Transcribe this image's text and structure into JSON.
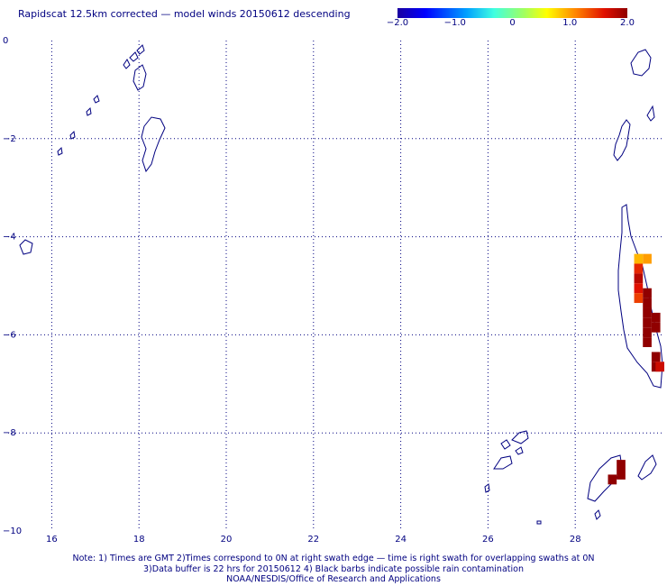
{
  "title": "Rapidscat 12.5km corrected — model winds 20150612 descending",
  "colorbar": {
    "ticks": [
      {
        "label": "−2.0",
        "value": -2.0
      },
      {
        "label": "−1.0",
        "value": -1.0
      },
      {
        "label": "0",
        "value": 0
      },
      {
        "label": "1.0",
        "value": 1.0
      },
      {
        "label": "2.0",
        "value": 2.0
      }
    ],
    "range": [
      -2.0,
      2.0
    ]
  },
  "map": {
    "lon_range": [
      15.0,
      30.0
    ],
    "lat_range": [
      -10.0,
      0.0
    ],
    "x_ticks": [
      {
        "label": "16",
        "value": 16
      },
      {
        "label": "18",
        "value": 18
      },
      {
        "label": "20",
        "value": 20
      },
      {
        "label": "22",
        "value": 22
      },
      {
        "label": "24",
        "value": 24
      },
      {
        "label": "26",
        "value": 26
      },
      {
        "label": "28",
        "value": 28
      }
    ],
    "y_ticks": [
      {
        "label": "0",
        "value": 0
      },
      {
        "label": "−2",
        "value": -2
      },
      {
        "label": "−4",
        "value": -4
      },
      {
        "label": "−6",
        "value": -6
      },
      {
        "label": "−8",
        "value": -8
      },
      {
        "label": "−10",
        "value": -10
      }
    ],
    "grid": true,
    "coast_color": "#000080",
    "wind_cells": [
      {
        "lon": 29.45,
        "lat": -4.45,
        "value": 0.9
      },
      {
        "lon": 29.65,
        "lat": -4.45,
        "value": 1.0
      },
      {
        "lon": 29.45,
        "lat": -4.65,
        "value": 1.5
      },
      {
        "lon": 29.45,
        "lat": -4.85,
        "value": 1.8
      },
      {
        "lon": 29.45,
        "lat": -5.05,
        "value": 1.6
      },
      {
        "lon": 29.45,
        "lat": -5.25,
        "value": 1.4
      },
      {
        "lon": 29.65,
        "lat": -5.15,
        "value": 2.0
      },
      {
        "lon": 29.65,
        "lat": -5.35,
        "value": 2.0
      },
      {
        "lon": 29.65,
        "lat": -5.55,
        "value": 2.0
      },
      {
        "lon": 29.85,
        "lat": -5.65,
        "value": 2.0
      },
      {
        "lon": 29.65,
        "lat": -5.75,
        "value": 2.0
      },
      {
        "lon": 29.85,
        "lat": -5.85,
        "value": 2.0
      },
      {
        "lon": 29.65,
        "lat": -5.95,
        "value": 2.0
      },
      {
        "lon": 29.65,
        "lat": -6.15,
        "value": 2.0
      },
      {
        "lon": 29.85,
        "lat": -6.45,
        "value": 2.0
      },
      {
        "lon": 29.85,
        "lat": -6.65,
        "value": 2.0
      },
      {
        "lon": 30.0,
        "lat": -6.65,
        "value": 1.7
      },
      {
        "lon": 28.85,
        "lat": -8.95,
        "value": 2.0
      },
      {
        "lon": 29.05,
        "lat": -8.85,
        "value": 2.0
      },
      {
        "lon": 29.05,
        "lat": -8.65,
        "value": 2.0
      }
    ]
  },
  "notes": [
    "Note: 1) Times are GMT 2)Times correspond to 0N at right swath edge — time is right swath for overlapping swaths at 0N",
    "3)Data buffer is 22 hrs for 20150612 4) Black barbs indicate possible rain contamination",
    "NOAA/NESDIS/Office of Research and Applications"
  ]
}
